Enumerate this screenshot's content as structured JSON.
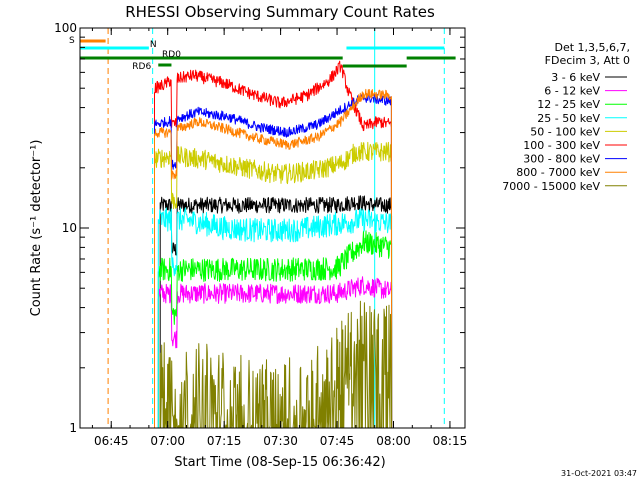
{
  "chart_data": {
    "type": "line",
    "title": "RHESSI Observing Summary Count Rates",
    "xlabel": "Start Time (08-Sep-15 06:36:42)",
    "ylabel": "Count Rate (s⁻¹ detector⁻¹)",
    "yscale": "log",
    "ylim": [
      1,
      100
    ],
    "xlim": [
      "06:36:42",
      "08:19:00"
    ],
    "x_ticks": [
      "06:45",
      "07:00",
      "07:15",
      "07:30",
      "07:45",
      "08:00",
      "08:15"
    ],
    "y_ticks": [
      "1",
      "10",
      "100"
    ],
    "grid": false,
    "legend_position": "top-right",
    "legend_header": [
      "Det 1,3,5,6,7,",
      "FDecim 3, Att 0"
    ],
    "timestamp": "31-Oct-2021 03:47",
    "flags": [
      {
        "label": "S",
        "color": "#ff8000",
        "start": "06:36:42",
        "end": "06:43:30"
      },
      {
        "label": "N",
        "color": "#00ffff",
        "start": "06:36:42",
        "end": "06:55:00"
      },
      {
        "label": "",
        "color": "#00ffff",
        "start": "07:47:30",
        "end": "08:13:30"
      },
      {
        "label": "RD0",
        "color": "#008000",
        "start": "06:36:42",
        "end": "07:46:30"
      },
      {
        "label": "RD6",
        "color": "#008000",
        "start": "06:57:30",
        "end": "07:01:00"
      },
      {
        "label": "",
        "color": "#008000",
        "start": "07:46:30",
        "end": "08:03:30"
      },
      {
        "label": "",
        "color": "#008000",
        "start": "08:03:30",
        "end": "08:16:30"
      }
    ],
    "markers": [
      {
        "time": "06:44:10",
        "color": "#ff8000",
        "style": "dashed"
      },
      {
        "time": "06:56:00",
        "color": "#00ffff",
        "style": "dashed"
      },
      {
        "time": "07:55:00",
        "color": "#00ffff",
        "style": "solid"
      },
      {
        "time": "08:13:30",
        "color": "#00ffff",
        "style": "dashed"
      }
    ],
    "series": [
      {
        "name": "3 - 6 keV",
        "color": "#000000",
        "noise": 0.04,
        "points": [
          [
            "06:58:00",
            13
          ],
          [
            "07:01:00",
            13
          ],
          [
            "07:15:00",
            13
          ],
          [
            "07:30:00",
            13
          ],
          [
            "07:45:00",
            13
          ],
          [
            "07:50:00",
            13.5
          ],
          [
            "07:55:00",
            13
          ],
          [
            "07:59:30",
            13
          ]
        ]
      },
      {
        "name": "6 - 12 keV",
        "color": "#ff00ff",
        "noise": 0.05,
        "points": [
          [
            "06:57:30",
            4.7
          ],
          [
            "07:15:00",
            4.7
          ],
          [
            "07:30:00",
            4.7
          ],
          [
            "07:45:00",
            4.7
          ],
          [
            "07:52:00",
            5.2
          ],
          [
            "07:59:30",
            4.8
          ]
        ]
      },
      {
        "name": "12 - 25 keV",
        "color": "#00ff00",
        "noise": 0.06,
        "points": [
          [
            "06:57:30",
            6.2
          ],
          [
            "07:15:00",
            6.2
          ],
          [
            "07:30:00",
            6.2
          ],
          [
            "07:45:00",
            6.3
          ],
          [
            "07:52:00",
            8.5
          ],
          [
            "07:59:30",
            8
          ]
        ]
      },
      {
        "name": "25 - 50 keV",
        "color": "#00ffff",
        "noise": 0.06,
        "points": [
          [
            "06:57:30",
            11
          ],
          [
            "07:05:00",
            11
          ],
          [
            "07:15:00",
            10
          ],
          [
            "07:25:00",
            9.7
          ],
          [
            "07:35:00",
            9.8
          ],
          [
            "07:45:00",
            10.5
          ],
          [
            "07:52:00",
            11
          ],
          [
            "07:59:30",
            10.5
          ]
        ]
      },
      {
        "name": "50 - 100 keV",
        "color": "#cccc00",
        "noise": 0.05,
        "points": [
          [
            "06:56:30",
            22
          ],
          [
            "07:01:00",
            23
          ],
          [
            "07:10:00",
            22
          ],
          [
            "07:20:00",
            20
          ],
          [
            "07:30:00",
            18.5
          ],
          [
            "07:40:00",
            19.5
          ],
          [
            "07:46:00",
            21
          ],
          [
            "07:50:00",
            24
          ],
          [
            "07:59:30",
            24
          ]
        ]
      },
      {
        "name": "100 - 300 keV",
        "color": "#ff0000",
        "noise": 0.03,
        "points": [
          [
            "06:56:30",
            50
          ],
          [
            "06:58:00",
            51
          ],
          [
            "06:59:00",
            52
          ],
          [
            "07:01:00",
            55
          ],
          [
            "07:07:00",
            58
          ],
          [
            "07:15:00",
            53
          ],
          [
            "07:22:00",
            47
          ],
          [
            "07:30:00",
            42
          ],
          [
            "07:37:00",
            46
          ],
          [
            "07:43:00",
            55
          ],
          [
            "07:46:00",
            65
          ],
          [
            "07:48:00",
            48
          ],
          [
            "07:52:00",
            32
          ],
          [
            "07:56:00",
            34
          ],
          [
            "07:59:30",
            33
          ]
        ]
      },
      {
        "name": "300 - 800 keV",
        "color": "#0000ff",
        "noise": 0.025,
        "points": [
          [
            "06:56:30",
            33
          ],
          [
            "07:00:00",
            34
          ],
          [
            "07:08:00",
            38
          ],
          [
            "07:16:00",
            36
          ],
          [
            "07:24:00",
            32
          ],
          [
            "07:32:00",
            30
          ],
          [
            "07:40:00",
            33
          ],
          [
            "07:46:00",
            39
          ],
          [
            "07:52:00",
            45
          ],
          [
            "07:59:30",
            43
          ]
        ]
      },
      {
        "name": "800 - 7000 keV",
        "color": "#ff8000",
        "noise": 0.025,
        "points": [
          [
            "06:56:30",
            30
          ],
          [
            "07:00:00",
            30
          ],
          [
            "07:08:00",
            34
          ],
          [
            "07:16:00",
            31
          ],
          [
            "07:24:00",
            28
          ],
          [
            "07:32:00",
            26
          ],
          [
            "07:40:00",
            28.5
          ],
          [
            "07:46:00",
            34
          ],
          [
            "07:52:00",
            47
          ],
          [
            "07:59:30",
            46
          ]
        ]
      },
      {
        "name": "7000 - 15000 keV",
        "color": "#808000",
        "noise": 0.25,
        "points": [
          [
            "06:58:00",
            1.6
          ],
          [
            "07:10:00",
            1.5
          ],
          [
            "07:20:00",
            1.3
          ],
          [
            "07:30:00",
            1.2
          ],
          [
            "07:40:00",
            1.5
          ],
          [
            "07:46:00",
            2
          ],
          [
            "07:52:00",
            2.5
          ],
          [
            "07:59:30",
            2.4
          ]
        ]
      }
    ]
  }
}
